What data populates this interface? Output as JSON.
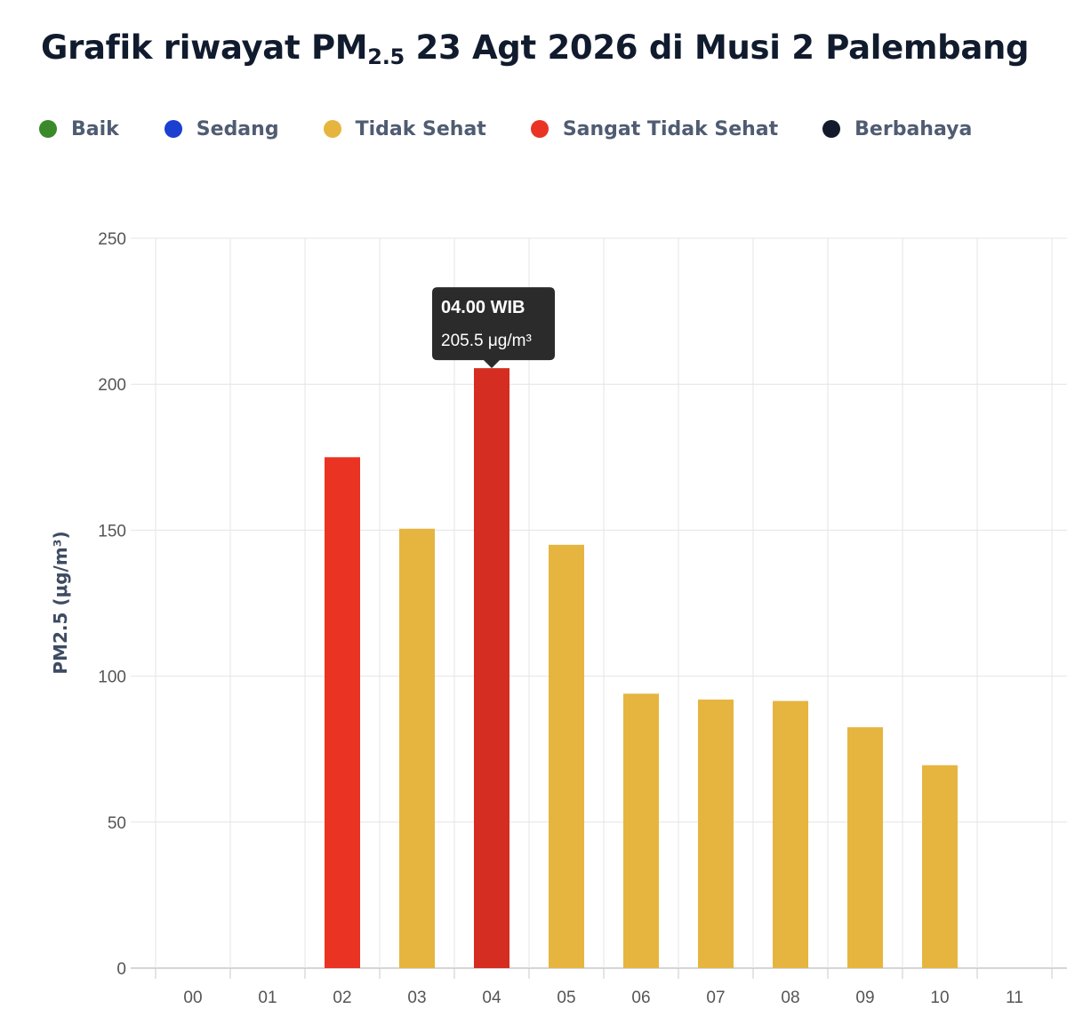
{
  "header": {
    "title_pre": "Grafik riwayat PM",
    "title_sub": "2.5",
    "title_post": " 23 Agt 2026 di Musi 2 Palembang"
  },
  "legend": [
    {
      "label": "Baik",
      "color": "#3a8a2c"
    },
    {
      "label": "Sedang",
      "color": "#1a3fd1"
    },
    {
      "label": "Tidak Sehat",
      "color": "#e6b53f"
    },
    {
      "label": "Sangat Tidak Sehat",
      "color": "#ea3323"
    },
    {
      "label": "Berbahaya",
      "color": "#121a2b"
    }
  ],
  "tooltip": {
    "title": "04.00 WIB",
    "value": "205.5 μg/m³"
  },
  "chart_data": {
    "type": "bar",
    "categories": [
      "00",
      "01",
      "02",
      "03",
      "04",
      "05",
      "06",
      "07",
      "08",
      "09",
      "10",
      "11"
    ],
    "values": [
      null,
      null,
      175,
      150.5,
      205.5,
      145,
      94,
      92,
      91.5,
      82.5,
      69.5,
      null
    ],
    "bar_colors": [
      null,
      null,
      "#ea3323",
      "#e6b53f",
      "#d52d21",
      "#e6b53f",
      "#e6b53f",
      "#e6b53f",
      "#e6b53f",
      "#e6b53f",
      "#e6b53f",
      null
    ],
    "ylabel": "PM2.5 (μg/m³)",
    "ylim": [
      0,
      250
    ],
    "yticks": [
      0,
      50,
      100,
      150,
      200,
      250
    ],
    "grid": true,
    "highlighted_category": "04"
  }
}
